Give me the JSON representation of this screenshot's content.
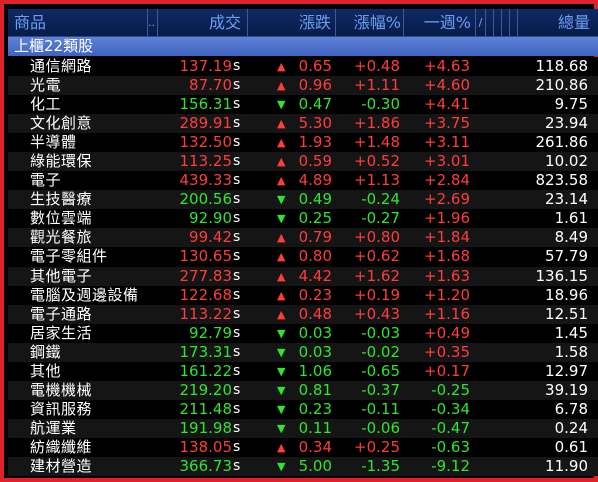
{
  "header": {
    "product": "商品",
    "dots": "..",
    "price": "成交",
    "change": "漲跌",
    "pct": "漲幅%",
    "week": "一週%",
    "slash": "/",
    "volume": "總量"
  },
  "group_label": "上櫃22類股",
  "colors": {
    "up": "#ff3c3c",
    "down": "#2ee62e",
    "border": "#e2202a",
    "header_text": "#6e9ef0"
  },
  "rows": [
    {
      "name": "通信網路",
      "price": "137.19",
      "s": "s",
      "dir": "up",
      "arrow": "▲",
      "chg": "0.65",
      "pct": "+0.48",
      "pct_dir": "up",
      "wk": "+4.63",
      "wk_dir": "up",
      "vol": "118.68"
    },
    {
      "name": "光電",
      "price": "87.70",
      "s": "s",
      "dir": "up",
      "arrow": "▲",
      "chg": "0.96",
      "pct": "+1.11",
      "pct_dir": "up",
      "wk": "+4.60",
      "wk_dir": "up",
      "vol": "210.86"
    },
    {
      "name": "化工",
      "price": "156.31",
      "s": "s",
      "dir": "down",
      "arrow": "▼",
      "chg": "0.47",
      "pct": "-0.30",
      "pct_dir": "down",
      "wk": "+4.41",
      "wk_dir": "up",
      "vol": "9.75"
    },
    {
      "name": "文化創意",
      "price": "289.91",
      "s": "s",
      "dir": "up",
      "arrow": "▲",
      "chg": "5.30",
      "pct": "+1.86",
      "pct_dir": "up",
      "wk": "+3.75",
      "wk_dir": "up",
      "vol": "23.94"
    },
    {
      "name": "半導體",
      "price": "132.50",
      "s": "s",
      "dir": "up",
      "arrow": "▲",
      "chg": "1.93",
      "pct": "+1.48",
      "pct_dir": "up",
      "wk": "+3.11",
      "wk_dir": "up",
      "vol": "261.86"
    },
    {
      "name": "綠能環保",
      "price": "113.25",
      "s": "s",
      "dir": "up",
      "arrow": "▲",
      "chg": "0.59",
      "pct": "+0.52",
      "pct_dir": "up",
      "wk": "+3.01",
      "wk_dir": "up",
      "vol": "10.02"
    },
    {
      "name": "電子",
      "price": "439.33",
      "s": "s",
      "dir": "up",
      "arrow": "▲",
      "chg": "4.89",
      "pct": "+1.13",
      "pct_dir": "up",
      "wk": "+2.84",
      "wk_dir": "up",
      "vol": "823.58"
    },
    {
      "name": "生技醫療",
      "price": "200.56",
      "s": "s",
      "dir": "down",
      "arrow": "▼",
      "chg": "0.49",
      "pct": "-0.24",
      "pct_dir": "down",
      "wk": "+2.69",
      "wk_dir": "up",
      "vol": "23.14"
    },
    {
      "name": "數位雲端",
      "price": "92.90",
      "s": "s",
      "dir": "down",
      "arrow": "▼",
      "chg": "0.25",
      "pct": "-0.27",
      "pct_dir": "down",
      "wk": "+1.96",
      "wk_dir": "up",
      "vol": "1.61"
    },
    {
      "name": "觀光餐旅",
      "price": "99.42",
      "s": "s",
      "dir": "up",
      "arrow": "▲",
      "chg": "0.79",
      "pct": "+0.80",
      "pct_dir": "up",
      "wk": "+1.84",
      "wk_dir": "up",
      "vol": "8.49"
    },
    {
      "name": "電子零組件",
      "price": "130.65",
      "s": "s",
      "dir": "up",
      "arrow": "▲",
      "chg": "0.80",
      "pct": "+0.62",
      "pct_dir": "up",
      "wk": "+1.68",
      "wk_dir": "up",
      "vol": "57.79"
    },
    {
      "name": "其他電子",
      "price": "277.83",
      "s": "s",
      "dir": "up",
      "arrow": "▲",
      "chg": "4.42",
      "pct": "+1.62",
      "pct_dir": "up",
      "wk": "+1.63",
      "wk_dir": "up",
      "vol": "136.15"
    },
    {
      "name": "電腦及週邊設備",
      "price": "122.68",
      "s": "s",
      "dir": "up",
      "arrow": "▲",
      "chg": "0.23",
      "pct": "+0.19",
      "pct_dir": "up",
      "wk": "+1.20",
      "wk_dir": "up",
      "vol": "18.96"
    },
    {
      "name": "電子通路",
      "price": "113.22",
      "s": "s",
      "dir": "up",
      "arrow": "▲",
      "chg": "0.48",
      "pct": "+0.43",
      "pct_dir": "up",
      "wk": "+1.16",
      "wk_dir": "up",
      "vol": "12.51"
    },
    {
      "name": "居家生活",
      "price": "92.79",
      "s": "s",
      "dir": "down",
      "arrow": "▼",
      "chg": "0.03",
      "pct": "-0.03",
      "pct_dir": "down",
      "wk": "+0.49",
      "wk_dir": "up",
      "vol": "1.45"
    },
    {
      "name": "鋼鐵",
      "price": "173.31",
      "s": "s",
      "dir": "down",
      "arrow": "▼",
      "chg": "0.03",
      "pct": "-0.02",
      "pct_dir": "down",
      "wk": "+0.35",
      "wk_dir": "up",
      "vol": "1.58"
    },
    {
      "name": "其他",
      "price": "161.22",
      "s": "s",
      "dir": "down",
      "arrow": "▼",
      "chg": "1.06",
      "pct": "-0.65",
      "pct_dir": "down",
      "wk": "+0.17",
      "wk_dir": "up",
      "vol": "12.97"
    },
    {
      "name": "電機機械",
      "price": "219.20",
      "s": "s",
      "dir": "down",
      "arrow": "▼",
      "chg": "0.81",
      "pct": "-0.37",
      "pct_dir": "down",
      "wk": "-0.25",
      "wk_dir": "down",
      "vol": "39.19"
    },
    {
      "name": "資訊服務",
      "price": "211.48",
      "s": "s",
      "dir": "down",
      "arrow": "▼",
      "chg": "0.23",
      "pct": "-0.11",
      "pct_dir": "down",
      "wk": "-0.34",
      "wk_dir": "down",
      "vol": "6.78"
    },
    {
      "name": "航運業",
      "price": "191.98",
      "s": "s",
      "dir": "down",
      "arrow": "▼",
      "chg": "0.11",
      "pct": "-0.06",
      "pct_dir": "down",
      "wk": "-0.47",
      "wk_dir": "down",
      "vol": "0.24"
    },
    {
      "name": "紡織纖維",
      "price": "138.05",
      "s": "s",
      "dir": "up",
      "arrow": "▲",
      "chg": "0.34",
      "pct": "+0.25",
      "pct_dir": "up",
      "wk": "-0.63",
      "wk_dir": "down",
      "vol": "0.61"
    },
    {
      "name": "建材營造",
      "price": "366.73",
      "s": "s",
      "dir": "down",
      "arrow": "▼",
      "chg": "5.00",
      "pct": "-1.35",
      "pct_dir": "down",
      "wk": "-9.12",
      "wk_dir": "down",
      "vol": "11.90"
    }
  ]
}
